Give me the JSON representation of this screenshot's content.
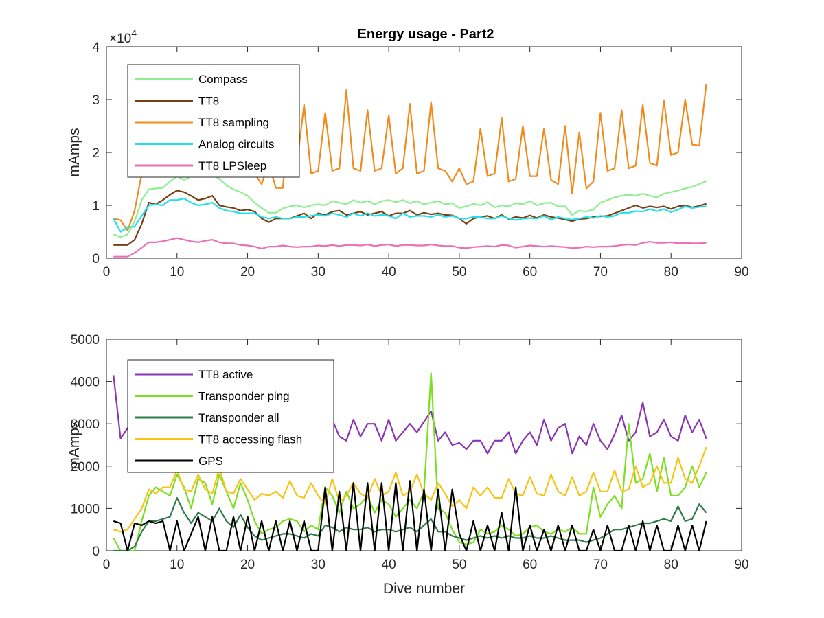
{
  "chart_data": [
    {
      "type": "line",
      "title": "Energy usage - Part2",
      "xlabel": "",
      "ylabel": "mAmps",
      "xlim": [
        0,
        90
      ],
      "ylim": [
        0,
        40000
      ],
      "xticks": [
        "0",
        "10",
        "20",
        "30",
        "40",
        "50",
        "60",
        "70",
        "80",
        "90"
      ],
      "yticks": [
        "0",
        "1",
        "2",
        "3",
        "4"
      ],
      "ytick_values": [
        0,
        10000,
        20000,
        30000,
        40000
      ],
      "exponent_label": "×10",
      "exponent_power": "4",
      "grid": false,
      "legend_position": "top-left",
      "x": [
        1,
        2,
        3,
        4,
        5,
        6,
        7,
        8,
        9,
        10,
        11,
        12,
        13,
        14,
        15,
        16,
        17,
        18,
        19,
        20,
        21,
        22,
        23,
        24,
        25,
        26,
        27,
        28,
        29,
        30,
        31,
        32,
        33,
        34,
        35,
        36,
        37,
        38,
        39,
        40,
        41,
        42,
        43,
        44,
        45,
        46,
        47,
        48,
        49,
        50,
        51,
        52,
        53,
        54,
        55,
        56,
        57,
        58,
        59,
        60,
        61,
        62,
        63,
        64,
        65,
        66,
        67,
        68,
        69,
        70,
        71,
        72,
        73,
        74,
        75,
        76,
        77,
        78,
        79,
        80,
        81,
        82,
        83,
        84,
        85
      ],
      "series": [
        {
          "name": "Compass",
          "color": "#90ee90",
          "values": [
            4500,
            4000,
            4500,
            7000,
            11000,
            13000,
            13200,
            13300,
            14500,
            15500,
            14800,
            15500,
            15500,
            15500,
            15800,
            15000,
            13800,
            13000,
            12500,
            11800,
            10500,
            9500,
            8600,
            8600,
            9400,
            9800,
            10000,
            9600,
            10000,
            10200,
            10000,
            10800,
            10500,
            10200,
            11000,
            10500,
            10800,
            10200,
            10800,
            11000,
            10600,
            11000,
            10400,
            10800,
            10200,
            10500,
            10800,
            10200,
            10400,
            9500,
            9800,
            10300,
            10000,
            10600,
            9600,
            10000,
            9800,
            10400,
            10200,
            10800,
            10000,
            10400,
            10500,
            9800,
            9800,
            8200,
            9000,
            8800,
            9200,
            10500,
            11000,
            11500,
            11800,
            12000,
            11800,
            12200,
            11800,
            11500,
            12200,
            12500,
            12800,
            13200,
            13500,
            14000,
            14600
          ]
        },
        {
          "name": "TT8",
          "color": "#7a3e13",
          "values": [
            2500,
            2500,
            2500,
            3500,
            6500,
            10500,
            10200,
            11000,
            12000,
            12800,
            12500,
            11800,
            11000,
            11300,
            11800,
            10000,
            9700,
            9500,
            9000,
            9200,
            8800,
            7500,
            6800,
            7500,
            7500,
            7500,
            8000,
            8500,
            7500,
            8500,
            8200,
            8800,
            9000,
            8200,
            8500,
            8800,
            8200,
            8500,
            8800,
            8000,
            8500,
            8500,
            9000,
            8200,
            8600,
            8300,
            8500,
            8200,
            8100,
            7500,
            6500,
            7500,
            7800,
            8000,
            7500,
            8200,
            7400,
            7800,
            7600,
            8100,
            7600,
            8200,
            7800,
            7600,
            7300,
            7000,
            7400,
            7500,
            7800,
            7900,
            8000,
            8500,
            9000,
            9500,
            10000,
            9500,
            9800,
            9600,
            9800,
            9300,
            9800,
            10000,
            9600,
            9900,
            10300
          ]
        },
        {
          "name": "TT8 sampling",
          "color": "#f08c1e",
          "values": [
            7500,
            7200,
            5200,
            9000,
            16000,
            19000,
            18500,
            21000,
            21500,
            28500,
            24000,
            20000,
            17500,
            17000,
            28000,
            17500,
            16500,
            17000,
            17000,
            16500,
            16000,
            14000,
            18000,
            13300,
            13300,
            28000,
            18000,
            29000,
            16000,
            16500,
            27500,
            16500,
            17000,
            31800,
            17000,
            16500,
            28000,
            16500,
            17000,
            27000,
            16000,
            17000,
            29200,
            16000,
            16500,
            29500,
            17000,
            16500,
            14500,
            17000,
            14000,
            14500,
            24500,
            15500,
            16000,
            26500,
            14500,
            15000,
            25000,
            15500,
            15500,
            24500,
            14800,
            14000,
            25000,
            12200,
            23800,
            13200,
            14500,
            27500,
            16500,
            17000,
            28000,
            17000,
            17500,
            29000,
            18000,
            17500,
            29800,
            19500,
            20000,
            30000,
            21500,
            21300,
            33000
          ]
        },
        {
          "name": "Analog circuits",
          "color": "#22e0e8",
          "values": [
            7500,
            5000,
            5800,
            6000,
            8000,
            10000,
            10200,
            10000,
            11000,
            11000,
            11300,
            10500,
            10000,
            10200,
            10500,
            9500,
            9000,
            8800,
            8500,
            8500,
            8500,
            7800,
            7500,
            7800,
            7500,
            7500,
            7800,
            7800,
            8000,
            8200,
            8000,
            8500,
            8200,
            7800,
            8500,
            8000,
            8500,
            8000,
            8200,
            8000,
            7500,
            8500,
            7800,
            8000,
            8000,
            7800,
            8200,
            7800,
            8000,
            7500,
            7500,
            7800,
            7800,
            7500,
            7500,
            8000,
            7500,
            7200,
            7500,
            7600,
            7500,
            8000,
            7300,
            7800,
            7500,
            7300,
            7500,
            7800,
            7600,
            8000,
            7800,
            8000,
            8600,
            8600,
            8900,
            8800,
            9300,
            8900,
            9300,
            8700,
            9200,
            9800,
            9500,
            9700,
            9800
          ]
        },
        {
          "name": "TT8 LPSleep",
          "color": "#ea6fb4",
          "values": [
            300,
            300,
            300,
            1000,
            2000,
            3000,
            3000,
            3200,
            3500,
            3800,
            3500,
            3200,
            3000,
            3300,
            3500,
            3000,
            2800,
            2800,
            2500,
            2400,
            2200,
            1800,
            2200,
            2200,
            2400,
            2200,
            2100,
            2200,
            2200,
            2400,
            2300,
            2500,
            2300,
            2500,
            2500,
            2400,
            2600,
            2300,
            2500,
            2600,
            2300,
            2500,
            2500,
            2400,
            2400,
            2600,
            2400,
            2300,
            2300,
            2000,
            1900,
            2100,
            2200,
            2300,
            2200,
            2500,
            2400,
            2000,
            2200,
            2400,
            2300,
            2200,
            2300,
            2200,
            2100,
            1900,
            2000,
            2200,
            2100,
            2200,
            2200,
            2300,
            2500,
            2600,
            2500,
            2900,
            3100,
            2900,
            2900,
            3000,
            2800,
            2900,
            2800,
            2800,
            2900
          ]
        }
      ]
    },
    {
      "type": "line",
      "title": "",
      "xlabel": "Dive number",
      "ylabel": "mAmps",
      "xlim": [
        0,
        90
      ],
      "ylim": [
        0,
        5000
      ],
      "xticks": [
        "0",
        "10",
        "20",
        "30",
        "40",
        "50",
        "60",
        "70",
        "80",
        "90"
      ],
      "yticks": [
        "0",
        "1000",
        "2000",
        "3000",
        "4000",
        "5000"
      ],
      "ytick_values": [
        0,
        1000,
        2000,
        3000,
        4000,
        5000
      ],
      "grid": false,
      "legend_position": "top-left",
      "x": [
        1,
        2,
        3,
        4,
        5,
        6,
        7,
        8,
        9,
        10,
        11,
        12,
        13,
        14,
        15,
        16,
        17,
        18,
        19,
        20,
        21,
        22,
        23,
        24,
        25,
        26,
        27,
        28,
        29,
        30,
        31,
        32,
        33,
        34,
        35,
        36,
        37,
        38,
        39,
        40,
        41,
        42,
        43,
        44,
        45,
        46,
        47,
        48,
        49,
        50,
        51,
        52,
        53,
        54,
        55,
        56,
        57,
        58,
        59,
        60,
        61,
        62,
        63,
        64,
        65,
        66,
        67,
        68,
        69,
        70,
        71,
        72,
        73,
        74,
        75,
        76,
        77,
        78,
        79,
        80,
        81,
        82,
        83,
        84,
        85
      ],
      "series": [
        {
          "name": "TT8 active",
          "color": "#8a35b5",
          "values": [
            4150,
            2650,
            2900,
            3100,
            3200,
            3300,
            3100,
            2950,
            3100,
            3300,
            3000,
            2800,
            3000,
            2900,
            2750,
            2800,
            2900,
            2750,
            2700,
            2800,
            2800,
            2500,
            2800,
            2900,
            2700,
            2600,
            2800,
            2700,
            2600,
            2700,
            2500,
            3100,
            2700,
            2600,
            3100,
            2700,
            3000,
            3000,
            2600,
            3100,
            2600,
            2800,
            3000,
            2800,
            3050,
            3300,
            2600,
            2800,
            2500,
            2550,
            2400,
            2600,
            2600,
            2300,
            2600,
            2600,
            2800,
            2300,
            2600,
            2800,
            2500,
            3100,
            2600,
            2900,
            3000,
            2300,
            2700,
            2500,
            3000,
            2600,
            2400,
            2750,
            3200,
            2600,
            2800,
            3500,
            2700,
            2800,
            3100,
            2700,
            2600,
            3200,
            2800,
            3100,
            2650
          ]
        },
        {
          "name": "Transponder ping",
          "color": "#7cdf21",
          "values": [
            300,
            0,
            0,
            0,
            700,
            1300,
            1500,
            1400,
            1300,
            1800,
            1500,
            1000,
            1700,
            1600,
            1100,
            1800,
            1400,
            1000,
            1600,
            1200,
            700,
            400,
            500,
            550,
            700,
            750,
            700,
            450,
            600,
            500,
            1500,
            1300,
            900,
            1400,
            1000,
            1100,
            1300,
            900,
            1200,
            1100,
            800,
            1000,
            1200,
            1000,
            1400,
            4200,
            1000,
            900,
            500,
            200,
            150,
            200,
            500,
            400,
            450,
            600,
            500,
            350,
            400,
            550,
            600,
            450,
            400,
            500,
            450,
            550,
            400,
            400,
            1500,
            800,
            1100,
            1300,
            1000,
            3000,
            1600,
            1700,
            2300,
            1400,
            2200,
            1300,
            1300,
            1500,
            2000,
            1500,
            1850
          ]
        },
        {
          "name": "Transponder all",
          "color": "#2f7b4c",
          "values": [
            0,
            0,
            0,
            100,
            450,
            700,
            700,
            750,
            800,
            1250,
            900,
            650,
            900,
            800,
            700,
            1000,
            700,
            550,
            850,
            550,
            350,
            250,
            300,
            350,
            400,
            400,
            350,
            300,
            400,
            350,
            600,
            550,
            450,
            550,
            500,
            500,
            550,
            450,
            500,
            500,
            450,
            500,
            550,
            450,
            600,
            750,
            450,
            450,
            350,
            300,
            250,
            300,
            350,
            300,
            350,
            300,
            350,
            300,
            300,
            350,
            300,
            300,
            350,
            300,
            250,
            250,
            250,
            200,
            250,
            300,
            400,
            500,
            500,
            550,
            600,
            650,
            650,
            700,
            750,
            700,
            1050,
            700,
            750,
            1100,
            900
          ]
        },
        {
          "name": "TT8 accessing flash",
          "color": "#f4c517",
          "values": [
            500,
            450,
            500,
            750,
            1000,
            1450,
            1350,
            1500,
            1500,
            1900,
            1450,
            1400,
            1800,
            1450,
            1350,
            1950,
            1400,
            1350,
            1700,
            1450,
            1200,
            1350,
            1300,
            1400,
            1250,
            1650,
            1300,
            1250,
            1600,
            1300,
            1100,
            1700,
            1150,
            1300,
            1600,
            1350,
            1250,
            1700,
            1300,
            1400,
            1850,
            1300,
            1400,
            1800,
            1350,
            1200,
            1600,
            1350,
            1050,
            1200,
            1000,
            1500,
            1300,
            1500,
            1250,
            1250,
            1700,
            1350,
            1300,
            1750,
            1350,
            1300,
            1800,
            1400,
            1300,
            1750,
            1300,
            1400,
            1850,
            1400,
            1400,
            1900,
            1400,
            1450,
            2000,
            1500,
            1600,
            2000,
            1600,
            1600,
            2200,
            1700,
            1600,
            2000,
            2450
          ]
        },
        {
          "name": "GPS",
          "color": "#000000",
          "values": [
            700,
            650,
            0,
            650,
            600,
            700,
            650,
            700,
            0,
            700,
            0,
            400,
            800,
            0,
            800,
            0,
            0,
            800,
            0,
            800,
            0,
            700,
            0,
            700,
            0,
            700,
            0,
            700,
            0,
            0,
            1500,
            0,
            1400,
            0,
            1600,
            0,
            1600,
            0,
            1600,
            0,
            1600,
            0,
            1650,
            0,
            1450,
            0,
            1450,
            0,
            1450,
            400,
            0,
            700,
            0,
            600,
            0,
            900,
            0,
            1500,
            0,
            600,
            0,
            500,
            0,
            600,
            0,
            600,
            0,
            0,
            500,
            0,
            600,
            0,
            0,
            600,
            0,
            700,
            0,
            600,
            0,
            0,
            600,
            0,
            600,
            0,
            700
          ]
        }
      ]
    }
  ]
}
